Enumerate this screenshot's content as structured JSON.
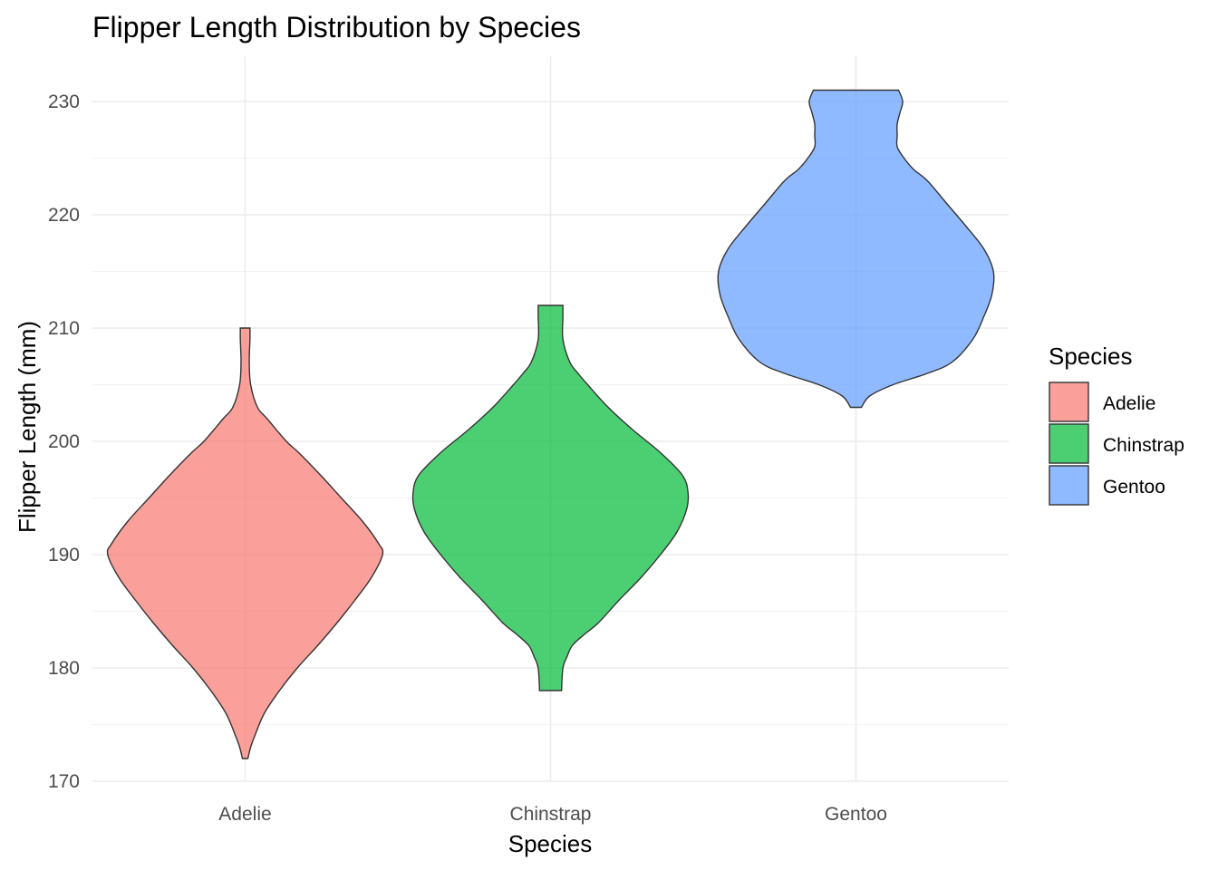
{
  "chart_data": {
    "type": "violin",
    "title": "Flipper Length Distribution by Species",
    "xlabel": "Species",
    "ylabel": "Flipper Length (mm)",
    "categories": [
      "Adelie",
      "Chinstrap",
      "Gentoo"
    ],
    "ylim": [
      170,
      233
    ],
    "y_ticks": [
      170,
      180,
      190,
      200,
      210,
      220,
      230
    ],
    "grid": true,
    "legend": {
      "title": "Species",
      "position": "right",
      "entries": [
        "Adelie",
        "Chinstrap",
        "Gentoo"
      ]
    },
    "colors": {
      "Adelie": "#F8766D",
      "Chinstrap": "#00BA38",
      "Gentoo": "#619CFF"
    },
    "series": [
      {
        "name": "Adelie",
        "min": 172,
        "max": 210,
        "density_profile": [
          [
            172,
            0.02
          ],
          [
            173,
            0.04
          ],
          [
            174,
            0.07
          ],
          [
            176,
            0.14
          ],
          [
            178,
            0.25
          ],
          [
            180,
            0.38
          ],
          [
            182,
            0.53
          ],
          [
            184,
            0.67
          ],
          [
            186,
            0.8
          ],
          [
            188,
            0.92
          ],
          [
            190,
            1.0
          ],
          [
            191,
            0.97
          ],
          [
            193,
            0.85
          ],
          [
            195,
            0.7
          ],
          [
            197,
            0.55
          ],
          [
            199,
            0.39
          ],
          [
            200,
            0.3
          ],
          [
            202,
            0.16
          ],
          [
            203,
            0.09
          ],
          [
            205,
            0.04
          ],
          [
            207,
            0.03
          ],
          [
            209,
            0.035
          ],
          [
            210,
            0.035
          ]
        ]
      },
      {
        "name": "Chinstrap",
        "min": 178,
        "max": 212,
        "density_profile": [
          [
            178,
            0.08
          ],
          [
            180,
            0.09
          ],
          [
            181,
            0.12
          ],
          [
            182,
            0.16
          ],
          [
            183,
            0.25
          ],
          [
            184,
            0.35
          ],
          [
            186,
            0.5
          ],
          [
            188,
            0.66
          ],
          [
            190,
            0.8
          ],
          [
            192,
            0.92
          ],
          [
            194,
            0.99
          ],
          [
            195.5,
            1.0
          ],
          [
            197,
            0.96
          ],
          [
            199,
            0.8
          ],
          [
            201,
            0.6
          ],
          [
            203,
            0.42
          ],
          [
            205,
            0.27
          ],
          [
            206,
            0.2
          ],
          [
            207,
            0.14
          ],
          [
            209,
            0.09
          ],
          [
            211,
            0.09
          ],
          [
            212,
            0.09
          ]
        ]
      },
      {
        "name": "Gentoo",
        "min": 203,
        "max": 231,
        "density_profile": [
          [
            203,
            0.04
          ],
          [
            204,
            0.1
          ],
          [
            205,
            0.27
          ],
          [
            206,
            0.52
          ],
          [
            207,
            0.7
          ],
          [
            209,
            0.85
          ],
          [
            211,
            0.93
          ],
          [
            213,
            0.99
          ],
          [
            215,
            1.0
          ],
          [
            217,
            0.93
          ],
          [
            219,
            0.8
          ],
          [
            221,
            0.66
          ],
          [
            223,
            0.52
          ],
          [
            224,
            0.42
          ],
          [
            225,
            0.35
          ],
          [
            226,
            0.3
          ],
          [
            227,
            0.3
          ],
          [
            228,
            0.3
          ],
          [
            229,
            0.32
          ],
          [
            230,
            0.34
          ],
          [
            231,
            0.31
          ]
        ]
      }
    ]
  }
}
